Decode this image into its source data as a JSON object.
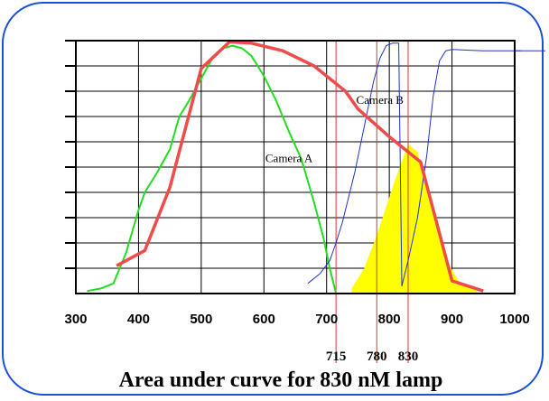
{
  "chart_data": {
    "type": "line",
    "title": "Area under curve for 830 nM lamp",
    "xlim": [
      300,
      1000
    ],
    "ylim": [
      0,
      10
    ],
    "grid": true,
    "x_ticks": [
      300,
      400,
      500,
      600,
      700,
      800,
      900,
      1000
    ],
    "series": [
      {
        "name": "Camera A",
        "color": "#22dd22",
        "x": [
          318,
          340,
          360,
          380,
          400,
          410,
          430,
          450,
          465,
          480,
          500,
          520,
          535,
          550,
          565,
          580,
          600,
          620,
          640,
          660,
          680,
          695,
          705,
          715
        ],
        "y": [
          0.1,
          0.2,
          0.4,
          1.6,
          3.3,
          4.0,
          4.8,
          5.7,
          7.0,
          7.6,
          8.5,
          9.4,
          9.7,
          9.8,
          9.7,
          9.4,
          8.6,
          7.6,
          6.4,
          5.3,
          3.6,
          2.2,
          1.0,
          0.0
        ]
      },
      {
        "name": "Camera B",
        "color": "#2233cc",
        "x": [
          670,
          690,
          705,
          715,
          725,
          735,
          745,
          755,
          765,
          775,
          785,
          795,
          805,
          815,
          820,
          830,
          845,
          860,
          870,
          880,
          890,
          900,
          950,
          1000,
          1010
        ],
        "y": [
          0.4,
          0.8,
          1.3,
          2.0,
          2.8,
          3.8,
          4.8,
          6.0,
          7.2,
          8.4,
          9.3,
          9.8,
          9.9,
          9.9,
          0.3,
          1.3,
          3.0,
          5.5,
          7.8,
          9.2,
          9.6,
          9.65,
          9.6,
          9.6,
          9.6
        ]
      },
      {
        "name": "830 nM lamp",
        "color": "#ef4b4b",
        "x": [
          365,
          410,
          450,
          500,
          545,
          580,
          630,
          680,
          730,
          750,
          800,
          850,
          900,
          950
        ],
        "y": [
          1.1,
          1.7,
          4.2,
          8.9,
          9.95,
          9.9,
          9.6,
          9.0,
          8.0,
          7.3,
          6.2,
          5.2,
          0.5,
          0.1
        ]
      }
    ],
    "shaded_area": {
      "color": "#ffff00",
      "x": [
        740,
        760,
        780,
        800,
        815,
        830,
        845,
        860,
        875,
        890,
        910,
        940
      ],
      "y": [
        0.2,
        1.0,
        2.3,
        3.8,
        4.9,
        5.9,
        5.6,
        4.3,
        2.8,
        1.4,
        0.5,
        0.1
      ]
    },
    "markers": [
      {
        "x": 715,
        "label": "715"
      },
      {
        "x": 780,
        "label": "780"
      },
      {
        "x": 830,
        "label": "830"
      }
    ],
    "marker_color": "#dd3333",
    "annotations": [
      {
        "text": "Camera A",
        "x": 640,
        "y": 5.2
      },
      {
        "text": "Camera B",
        "x": 785,
        "y": 7.5
      }
    ]
  }
}
